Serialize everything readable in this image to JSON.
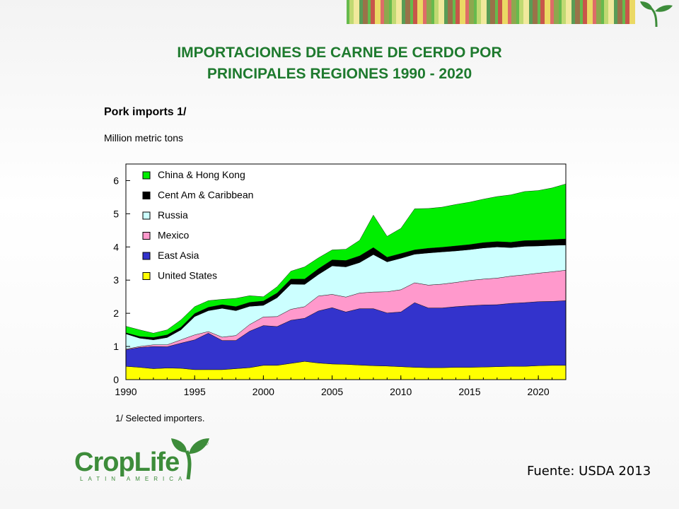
{
  "slide": {
    "title_line1": "IMPORTACIONES DE CARNE DE CERDO POR",
    "title_line2": "PRINCIPALES REGIONES 1990 - 2020",
    "source": "Fuente: USDA 2013",
    "logo_text": "CropLife",
    "logo_sub": "LATIN AMERICA",
    "logo_reg": "®"
  },
  "colors": {
    "title": "#1e7a2e",
    "stripes": [
      "#4caf2f",
      "#e9d44a",
      "#8a5a2a",
      "#b6d35b",
      "#d9534f",
      "#4caf2f",
      "#f0e68c",
      "#7a9a30",
      "#c0392b",
      "#3d8c3a"
    ]
  },
  "chart_data": {
    "type": "area",
    "stacked": true,
    "title": "Pork imports 1/",
    "subtitle": "Million metric tons",
    "footnote": "1/ Selected importers.",
    "xlim": [
      1990,
      2022
    ],
    "ylim": [
      0,
      6.5
    ],
    "x_ticks": [
      "1990",
      "1995",
      "2000",
      "2005",
      "2010",
      "2015",
      "2020"
    ],
    "y_ticks": [
      "0",
      "1",
      "2",
      "3",
      "4",
      "5",
      "6"
    ],
    "legend_position": "top-left",
    "x": [
      1990,
      1991,
      1992,
      1993,
      1994,
      1995,
      1996,
      1997,
      1998,
      1999,
      2000,
      2001,
      2002,
      2003,
      2004,
      2005,
      2006,
      2007,
      2008,
      2009,
      2010,
      2011,
      2012,
      2013,
      2014,
      2015,
      2016,
      2017,
      2018,
      2019,
      2020,
      2021,
      2022
    ],
    "series": [
      {
        "name": "United States",
        "color": "#ffff00",
        "values": [
          0.4,
          0.37,
          0.33,
          0.35,
          0.34,
          0.3,
          0.3,
          0.3,
          0.33,
          0.36,
          0.43,
          0.43,
          0.49,
          0.55,
          0.5,
          0.47,
          0.46,
          0.44,
          0.42,
          0.41,
          0.39,
          0.37,
          0.36,
          0.36,
          0.37,
          0.37,
          0.38,
          0.39,
          0.4,
          0.4,
          0.42,
          0.43,
          0.43
        ]
      },
      {
        "name": "East Asia",
        "color": "#3333cc",
        "values": [
          0.5,
          0.6,
          0.67,
          0.64,
          0.76,
          0.9,
          1.1,
          0.88,
          0.85,
          1.1,
          1.2,
          1.17,
          1.3,
          1.3,
          1.57,
          1.7,
          1.58,
          1.7,
          1.72,
          1.6,
          1.65,
          1.95,
          1.8,
          1.8,
          1.83,
          1.86,
          1.87,
          1.87,
          1.9,
          1.92,
          1.93,
          1.93,
          1.95
        ]
      },
      {
        "name": "Mexico",
        "color": "#ff99cc",
        "values": [
          0.02,
          0.03,
          0.05,
          0.06,
          0.1,
          0.15,
          0.05,
          0.1,
          0.15,
          0.2,
          0.26,
          0.3,
          0.33,
          0.35,
          0.45,
          0.4,
          0.45,
          0.47,
          0.5,
          0.64,
          0.67,
          0.6,
          0.69,
          0.72,
          0.73,
          0.76,
          0.78,
          0.8,
          0.82,
          0.84,
          0.86,
          0.89,
          0.92
        ]
      },
      {
        "name": "Russia",
        "color": "#ccffff",
        "values": [
          0.46,
          0.25,
          0.15,
          0.22,
          0.3,
          0.55,
          0.63,
          0.87,
          0.75,
          0.55,
          0.35,
          0.57,
          0.76,
          0.67,
          0.65,
          0.86,
          0.91,
          0.92,
          1.13,
          0.9,
          0.95,
          0.86,
          0.97,
          0.97,
          0.95,
          0.93,
          0.94,
          0.94,
          0.86,
          0.86,
          0.82,
          0.8,
          0.76
        ]
      },
      {
        "name": "Cent Am & Caribbean",
        "color": "#000000",
        "values": [
          0.03,
          0.05,
          0.07,
          0.08,
          0.08,
          0.09,
          0.1,
          0.11,
          0.12,
          0.12,
          0.13,
          0.14,
          0.15,
          0.16,
          0.17,
          0.18,
          0.19,
          0.2,
          0.21,
          0.14,
          0.14,
          0.13,
          0.14,
          0.14,
          0.15,
          0.15,
          0.16,
          0.16,
          0.16,
          0.17,
          0.17,
          0.17,
          0.18
        ]
      },
      {
        "name": "China & Hong Kong",
        "color": "#00ee00",
        "values": [
          0.2,
          0.2,
          0.13,
          0.15,
          0.22,
          0.21,
          0.2,
          0.16,
          0.25,
          0.2,
          0.13,
          0.19,
          0.24,
          0.37,
          0.33,
          0.3,
          0.34,
          0.47,
          0.98,
          0.63,
          0.76,
          1.24,
          1.2,
          1.21,
          1.25,
          1.28,
          1.31,
          1.36,
          1.43,
          1.48,
          1.5,
          1.56,
          1.66
        ]
      }
    ]
  }
}
